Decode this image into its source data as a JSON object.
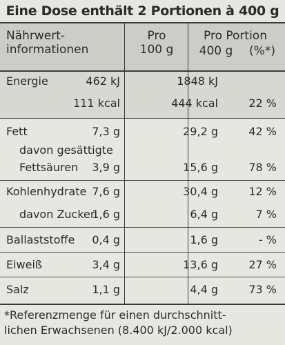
{
  "title": "Eine Dose enthält 2 Portionen à 400 g",
  "header": {
    "label_line1": "Nährwert-",
    "label_line2": "informationen",
    "col1_line1": "Pro",
    "col1_line2": "100 g",
    "col2_line1": "Pro Portion",
    "col2_line2_g": "400 g",
    "col2_line2_pct": "(%*)"
  },
  "rows": [
    {
      "label": "Energie",
      "per100": "462 kJ",
      "portion": "1848 kJ",
      "pct": ""
    },
    {
      "label": "",
      "per100": "111 kcal",
      "portion": "444 kcal",
      "pct": "22 %"
    },
    {
      "label": "Fett",
      "per100": "7,3 g",
      "portion": "29,2 g",
      "pct": "42 %"
    },
    {
      "label": "davon gesättigte",
      "per100": "",
      "portion": "",
      "pct": ""
    },
    {
      "label": "Fettsäuren",
      "per100": "3,9 g",
      "portion": "15,6 g",
      "pct": "78 %"
    },
    {
      "label": "Kohlenhydrate",
      "per100": "7,6 g",
      "portion": "30,4 g",
      "pct": "12 %"
    },
    {
      "label": "davon Zucker",
      "per100": "1,6 g",
      "portion": "6,4 g",
      "pct": "7 %"
    },
    {
      "label": "Ballaststoffe",
      "per100": "0,4 g",
      "portion": "1,6 g",
      "pct": "- %"
    },
    {
      "label": "Eiweiß",
      "per100": "3,4 g",
      "portion": "13,6 g",
      "pct": "27 %"
    },
    {
      "label": "Salz",
      "per100": "1,1 g",
      "portion": "4,4 g",
      "pct": "73 %"
    }
  ],
  "footnote": {
    "line1": "*Referenzmenge für einen durchschnitt-",
    "line2": "lichen Erwachsenen (8.400 kJ/2.000 kcal)"
  }
}
